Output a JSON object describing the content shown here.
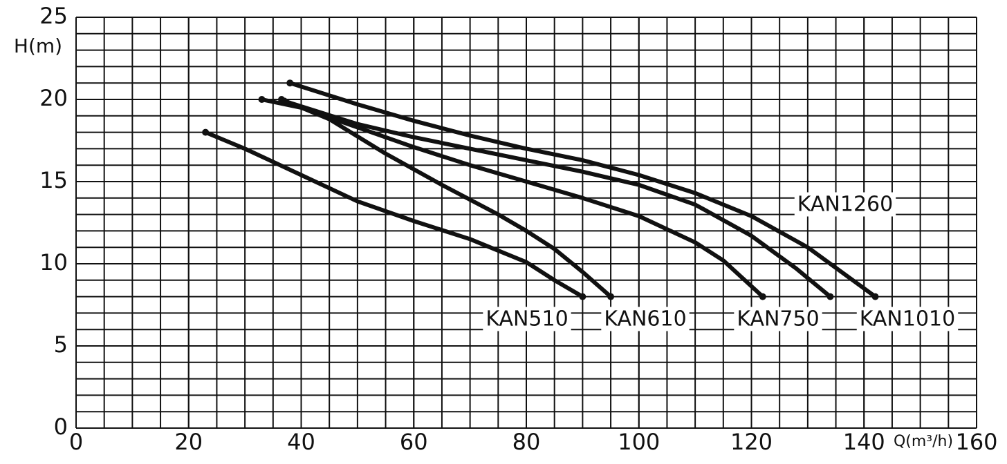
{
  "chart_data": {
    "type": "line",
    "y_label": "H(m)",
    "x_label": "Q(m³/h)",
    "xlim": [
      0,
      160
    ],
    "xticks": [
      0,
      20,
      40,
      60,
      80,
      100,
      120,
      140,
      160
    ],
    "ylim": [
      0,
      25
    ],
    "yticks": [
      0,
      5,
      10,
      15,
      20,
      25
    ],
    "grid": true,
    "series": [
      {
        "name": "KAN510",
        "color": "#111111",
        "x": [
          23,
          30,
          40,
          50,
          60,
          70,
          80,
          85,
          90
        ],
        "values": [
          18,
          17,
          15.4,
          13.8,
          12.6,
          11.5,
          10.1,
          9,
          8
        ]
      },
      {
        "name": "KAN610",
        "color": "#111111",
        "x": [
          36.5,
          45,
          55,
          65,
          75,
          80,
          85,
          90,
          95
        ],
        "values": [
          20,
          18.8,
          16.7,
          14.8,
          13,
          12,
          10.9,
          9.5,
          8
        ]
      },
      {
        "name": "KAN750",
        "color": "#111111",
        "x": [
          33,
          40,
          50,
          60,
          70,
          80,
          90,
          100,
          110,
          115,
          122
        ],
        "values": [
          20,
          19.5,
          18.3,
          17.1,
          16,
          15,
          14,
          12.9,
          11.3,
          10.2,
          8
        ]
      },
      {
        "name": "KAN1010",
        "color": "#111111",
        "x": [
          37,
          50,
          60,
          70,
          80,
          90,
          100,
          110,
          120,
          128,
          134
        ],
        "values": [
          19.9,
          18.5,
          17.7,
          17,
          16.3,
          15.6,
          14.8,
          13.6,
          11.7,
          9.7,
          8
        ]
      },
      {
        "name": "KAN1260",
        "color": "#111111",
        "x": [
          38,
          50,
          60,
          70,
          80,
          90,
          100,
          110,
          120,
          130,
          142
        ],
        "values": [
          21,
          19.7,
          18.7,
          17.8,
          17,
          16.3,
          15.4,
          14.3,
          12.9,
          11,
          8
        ]
      }
    ]
  }
}
